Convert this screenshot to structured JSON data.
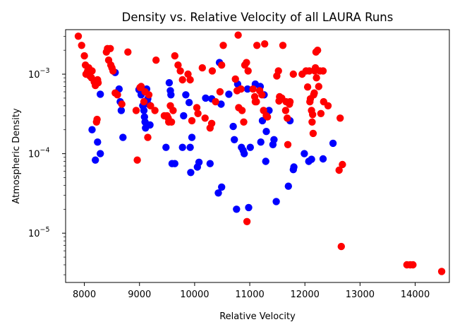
{
  "chart_data": {
    "type": "scatter",
    "title": "Density vs. Relative Velocity of all LAURA Runs",
    "xlabel": "Relative Velocity",
    "ylabel": "Atmospheric Density",
    "xlim": [
      7660,
      14620
    ],
    "ylim_log10": [
      -5.62,
      -2.44
    ],
    "yscale": "log",
    "grid": false,
    "x_ticks": [
      8000,
      9000,
      10000,
      11000,
      12000,
      13000,
      14000
    ],
    "y_ticks": [
      {
        "base": "10",
        "exp": "−5",
        "value": 1e-05
      },
      {
        "base": "10",
        "exp": "−4",
        "value": 0.0001
      },
      {
        "base": "10",
        "exp": "−3",
        "value": 0.001
      }
    ],
    "colors": {
      "blue": "#0000ff",
      "red": "#ff0000"
    },
    "series": [
      {
        "color": "#0000ff",
        "points": [
          [
            8140,
            0.0002
          ],
          [
            8200,
            8.3e-05
          ],
          [
            8240,
            0.00014
          ],
          [
            8290,
            0.0001
          ],
          [
            8290,
            0.00056
          ],
          [
            8560,
            0.00105
          ],
          [
            8630,
            0.00065
          ],
          [
            8650,
            0.00045
          ],
          [
            8670,
            0.00035
          ],
          [
            8700,
            0.00016
          ],
          [
            8990,
            0.00064
          ],
          [
            9030,
            0.00055
          ],
          [
            9060,
            0.0004
          ],
          [
            9080,
            0.00035
          ],
          [
            9090,
            0.00029
          ],
          [
            9100,
            0.00025
          ],
          [
            9110,
            0.00021
          ],
          [
            9130,
            0.00065
          ],
          [
            9150,
            0.00049
          ],
          [
            9160,
            0.00042
          ],
          [
            9190,
            0.00023
          ],
          [
            9480,
            0.00012
          ],
          [
            9540,
            0.00078
          ],
          [
            9560,
            0.00062
          ],
          [
            9570,
            0.00055
          ],
          [
            9590,
            7.5e-05
          ],
          [
            9640,
            7.5e-05
          ],
          [
            9780,
            0.00012
          ],
          [
            9800,
            0.0003
          ],
          [
            9840,
            0.00055
          ],
          [
            9900,
            0.00044
          ],
          [
            9920,
            0.00012
          ],
          [
            9930,
            5.8e-05
          ],
          [
            9950,
            0.00016
          ],
          [
            10050,
            6.8e-05
          ],
          [
            10080,
            7.8e-05
          ],
          [
            10200,
            0.0005
          ],
          [
            10280,
            7.5e-05
          ],
          [
            10310,
            0.00049
          ],
          [
            10430,
            3.2e-05
          ],
          [
            10450,
            0.0014
          ],
          [
            10480,
            0.00042
          ],
          [
            10490,
            3.8e-05
          ],
          [
            10620,
            0.00056
          ],
          [
            10700,
            0.00022
          ],
          [
            10720,
            0.00015
          ],
          [
            10760,
            2e-05
          ],
          [
            10780,
            0.00075
          ],
          [
            10850,
            0.00012
          ],
          [
            10880,
            0.00011
          ],
          [
            10900,
            0.0001
          ],
          [
            10960,
            0.00065
          ],
          [
            10980,
            2.1e-05
          ],
          [
            11010,
            0.00012
          ],
          [
            11100,
            0.00075
          ],
          [
            11190,
            0.0007
          ],
          [
            11200,
            0.00014
          ],
          [
            11230,
            0.00026
          ],
          [
            11260,
            0.00055
          ],
          [
            11290,
            8e-05
          ],
          [
            11300,
            0.00019
          ],
          [
            11350,
            0.00035
          ],
          [
            11420,
            0.00013
          ],
          [
            11440,
            0.00015
          ],
          [
            11480,
            2.5e-05
          ],
          [
            11700,
            3.9e-05
          ],
          [
            11730,
            0.00026
          ],
          [
            11790,
            6.3e-05
          ],
          [
            11800,
            6.8e-05
          ],
          [
            11990,
            0.0001
          ],
          [
            12070,
            8e-05
          ],
          [
            12120,
            8.5e-05
          ],
          [
            12330,
            8.6e-05
          ],
          [
            12510,
            0.000135
          ]
        ]
      },
      {
        "color": "#ff0000",
        "points": [
          [
            7890,
            0.003
          ],
          [
            7950,
            0.0023
          ],
          [
            8000,
            0.0017
          ],
          [
            8020,
            0.0013
          ],
          [
            8030,
            0.001
          ],
          [
            8060,
            0.0011
          ],
          [
            8080,
            0.0012
          ],
          [
            8100,
            0.00095
          ],
          [
            8130,
            0.0009
          ],
          [
            8140,
            0.0011
          ],
          [
            8180,
            0.0008
          ],
          [
            8200,
            0.00072
          ],
          [
            8220,
            0.00025
          ],
          [
            8230,
            0.00027
          ],
          [
            8240,
            0.00085
          ],
          [
            8250,
            0.00078
          ],
          [
            8400,
            0.0019
          ],
          [
            8420,
            0.0021
          ],
          [
            8440,
            0.0015
          ],
          [
            8470,
            0.0021
          ],
          [
            8480,
            0.0013
          ],
          [
            8500,
            0.0012
          ],
          [
            8520,
            0.0011
          ],
          [
            8560,
            0.00058
          ],
          [
            8600,
            0.00055
          ],
          [
            8680,
            0.00042
          ],
          [
            8790,
            0.0019
          ],
          [
            8940,
            0.00035
          ],
          [
            8960,
            8.3e-05
          ],
          [
            9010,
            0.00068
          ],
          [
            9030,
            0.0007
          ],
          [
            9080,
            0.00045
          ],
          [
            9100,
            0.0006
          ],
          [
            9150,
            0.00016
          ],
          [
            9170,
            0.00055
          ],
          [
            9200,
            0.0004
          ],
          [
            9280,
            0.00035
          ],
          [
            9300,
            0.0015
          ],
          [
            9450,
            0.0003
          ],
          [
            9500,
            0.0003
          ],
          [
            9520,
            0.00028
          ],
          [
            9530,
            0.00025
          ],
          [
            9560,
            0.0004
          ],
          [
            9580,
            0.00025
          ],
          [
            9610,
            0.00035
          ],
          [
            9640,
            0.0017
          ],
          [
            9700,
            0.0013
          ],
          [
            9740,
            0.0011
          ],
          [
            9780,
            0.00085
          ],
          [
            9880,
            0.001
          ],
          [
            9920,
            0.00085
          ],
          [
            9950,
            0.00026
          ],
          [
            10040,
            0.00038
          ],
          [
            10060,
            0.00032
          ],
          [
            10140,
            0.0012
          ],
          [
            10190,
            0.00028
          ],
          [
            10280,
            0.00021
          ],
          [
            10310,
            0.00024
          ],
          [
            10320,
            0.0011
          ],
          [
            10380,
            0.00045
          ],
          [
            10460,
            0.0006
          ],
          [
            10490,
            0.0013
          ],
          [
            10520,
            0.0023
          ],
          [
            10740,
            0.00087
          ],
          [
            10770,
            0.00062
          ],
          [
            10790,
            0.0031
          ],
          [
            10800,
            0.00038
          ],
          [
            10840,
            0.00065
          ],
          [
            10860,
            0.00035
          ],
          [
            10890,
            0.00025
          ],
          [
            10910,
            0.0013
          ],
          [
            10940,
            0.0014
          ],
          [
            10950,
            1.4e-05
          ],
          [
            10970,
            0.0011
          ],
          [
            11060,
            0.00065
          ],
          [
            11090,
            0.00052
          ],
          [
            11100,
            0.00045
          ],
          [
            11120,
            0.00045
          ],
          [
            11130,
            0.0023
          ],
          [
            11180,
            0.00062
          ],
          [
            11220,
            0.00055
          ],
          [
            11250,
            0.00035
          ],
          [
            11270,
            0.0024
          ],
          [
            11300,
            0.0003
          ],
          [
            11320,
            0.00029
          ],
          [
            11490,
            0.00095
          ],
          [
            11520,
            0.0011
          ],
          [
            11530,
            0.00046
          ],
          [
            11540,
            0.00052
          ],
          [
            11580,
            0.0005
          ],
          [
            11600,
            0.0023
          ],
          [
            11650,
            0.00035
          ],
          [
            11660,
            0.00045
          ],
          [
            11680,
            0.00028
          ],
          [
            11690,
            0.00013
          ],
          [
            11720,
            0.00042
          ],
          [
            11730,
            0.00045
          ],
          [
            11790,
            0.001
          ],
          [
            11950,
            0.001
          ],
          [
            12020,
            0.0011
          ],
          [
            12050,
            0.00069
          ],
          [
            12080,
            0.0011
          ],
          [
            12090,
            0.00045
          ],
          [
            12100,
            0.00049
          ],
          [
            12120,
            0.00035
          ],
          [
            12130,
            0.00025
          ],
          [
            12140,
            0.00031
          ],
          [
            12150,
            0.00018
          ],
          [
            12160,
            0.00055
          ],
          [
            12170,
            0.00058
          ],
          [
            12180,
            0.0011
          ],
          [
            12190,
            0.0012
          ],
          [
            12200,
            0.0019
          ],
          [
            12210,
            0.0009
          ],
          [
            12230,
            0.002
          ],
          [
            12250,
            0.0007
          ],
          [
            12270,
            0.0011
          ],
          [
            12290,
            0.00032
          ],
          [
            12330,
            0.0011
          ],
          [
            12340,
            0.00045
          ],
          [
            12420,
            0.0004
          ],
          [
            12620,
            6.2e-05
          ],
          [
            12640,
            0.00028
          ],
          [
            12660,
            6.8e-06
          ],
          [
            12680,
            7.3e-05
          ],
          [
            13850,
            4e-06
          ],
          [
            13910,
            4e-06
          ],
          [
            13960,
            4e-06
          ],
          [
            14480,
            3.3e-06
          ]
        ]
      }
    ]
  }
}
